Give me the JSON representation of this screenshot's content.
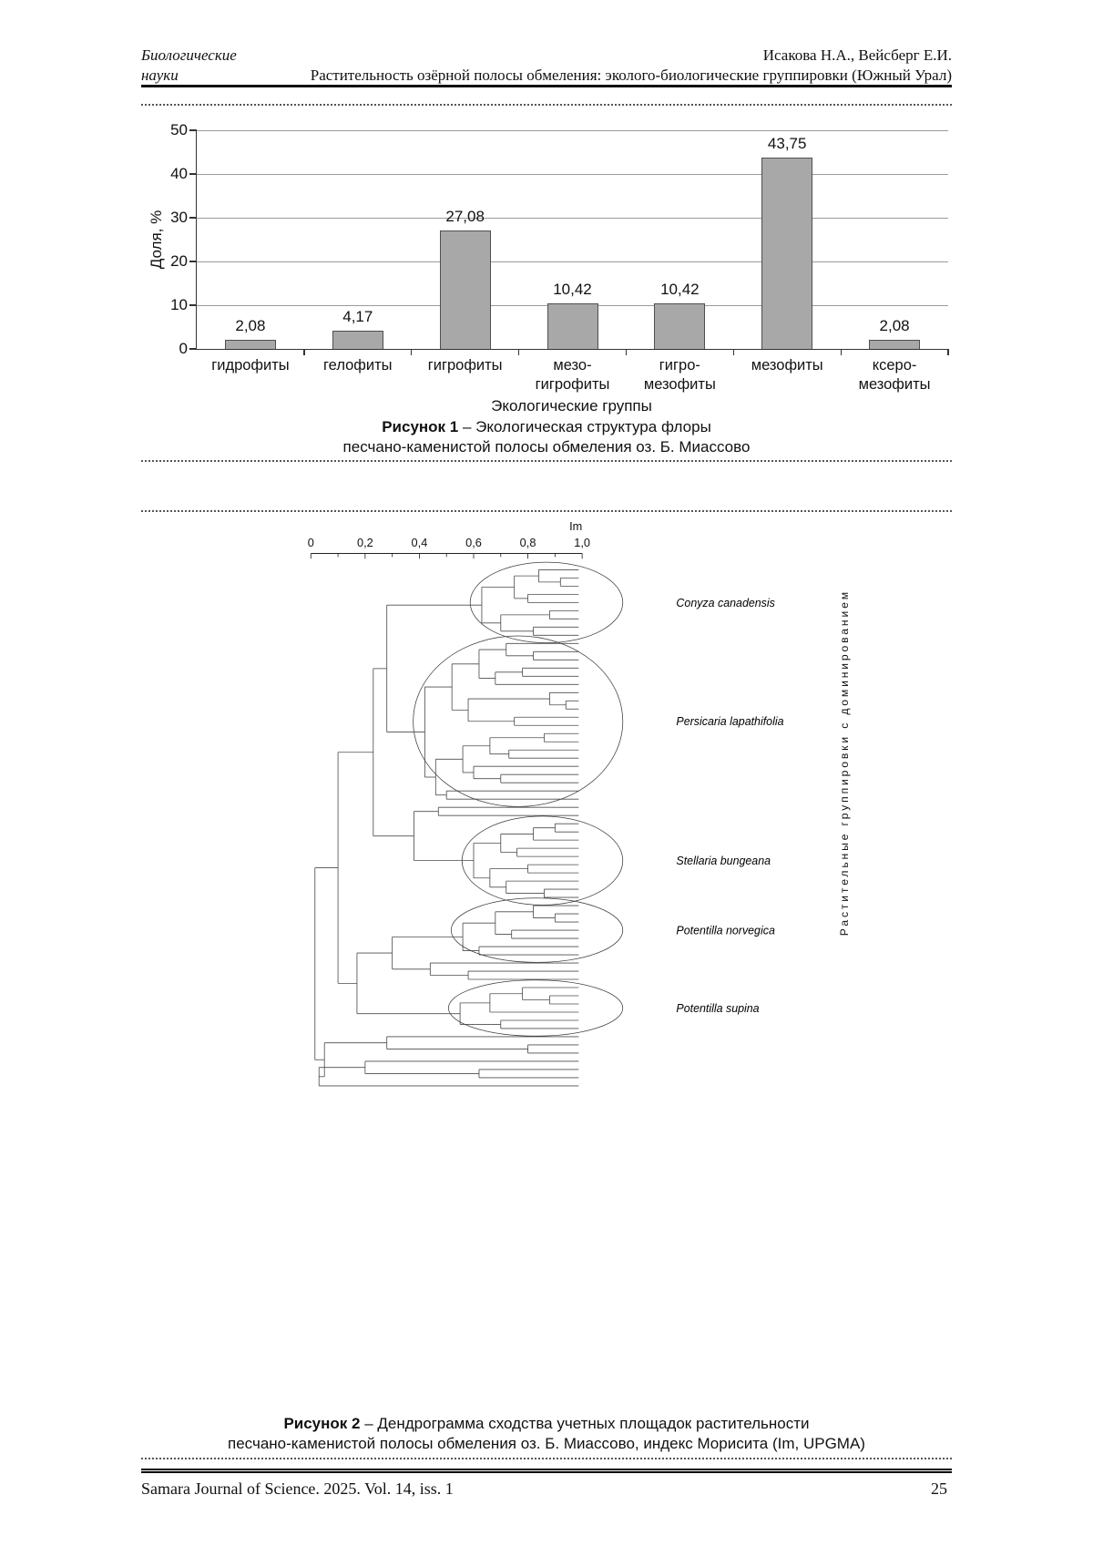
{
  "header": {
    "left_line1": "Биологические",
    "left_line2": "науки",
    "right_line1": "Исакова Н.А., Вейсберг Е.И.",
    "right_line2": "Растительность озёрной полосы обмеления: эколого-биологические группировки (Южный Урал)"
  },
  "figure1": {
    "caption_bold": "Рисунок 1",
    "caption_rest": " – Экологическая структура флоры",
    "caption_line2": "песчано-каменистой полосы обмеления оз. Б. Миассово"
  },
  "figure2": {
    "caption_bold": "Рисунок 2",
    "caption_rest": " – Дендрограмма сходства учетных площадок растительности",
    "caption_line2": "песчано-каменистой полосы обмеления оз. Б. Миассово, индекс Морисита (Im, UPGMA)"
  },
  "footer": {
    "journal": "Samara Journal of Science. 2025. Vol. 14, iss. 1",
    "page": "25"
  },
  "chart_data": [
    {
      "type": "bar",
      "categories": [
        [
          "гидрофиты"
        ],
        [
          "гелофиты"
        ],
        [
          "гигрофиты"
        ],
        [
          "мезо-",
          "гигрофиты"
        ],
        [
          "гигро-",
          "мезофиты"
        ],
        [
          "мезофиты"
        ],
        [
          "ксеро-",
          "мезофиты"
        ]
      ],
      "values": [
        2.08,
        4.17,
        27.08,
        10.42,
        10.42,
        43.75,
        2.08
      ],
      "value_labels": [
        "2,08",
        "4,17",
        "27,08",
        "10,42",
        "10,42",
        "43,75",
        "2,08"
      ],
      "ylabel": "Доля, %",
      "xlabel": "Экологические группы",
      "ylim": [
        0,
        50
      ],
      "yticks": [
        0,
        10,
        20,
        30,
        40,
        50
      ],
      "grid": true,
      "bar_color": "#a8a8a8",
      "bar_border": "#4f4f4f"
    },
    {
      "type": "dendrogram",
      "orientation": "horizontal",
      "axis_label": "Im",
      "axis_range": [
        0,
        1
      ],
      "axis_ticks": [
        "0",
        "0,2",
        "0,4",
        "0,6",
        "0,8",
        "1,0"
      ],
      "right_label": "Растительные группировки с доминированием",
      "clusters": [
        "Conyza canadensis",
        "Persicaria lapathifolia",
        "Stellaria bungeana",
        "Potentilla norvegica",
        "Potentilla supina"
      ],
      "tree": {
        "h": 0.015,
        "c": [
          {
            "h": 0.1,
            "c": [
              {
                "h": 0.23,
                "c": [
                  {
                    "h": 0.28,
                    "c": [
                      {
                        "h": 0.63,
                        "label": "Conyza canadensis",
                        "c": [
                          {
                            "h": 0.75,
                            "c": [
                              {
                                "h": 0.84,
                                "c": [
                                  1,
                                  {
                                    "h": 0.92,
                                    "c": [
                                      1,
                                      1
                                    ]
                                  }
                                ]
                              },
                              {
                                "h": 0.8,
                                "c": [
                                  1,
                                  1
                                ]
                              }
                            ]
                          },
                          {
                            "h": 0.7,
                            "c": [
                              {
                                "h": 0.88,
                                "c": [
                                  1,
                                  1
                                ]
                              },
                              {
                                "h": 0.82,
                                "c": [
                                  1,
                                  1
                                ]
                              }
                            ]
                          }
                        ]
                      },
                      {
                        "h": 0.42,
                        "label": "Persicaria lapathifolia",
                        "c": [
                          {
                            "h": 0.52,
                            "c": [
                              {
                                "h": 0.62,
                                "c": [
                                  {
                                    "h": 0.72,
                                    "c": [
                                      1,
                                      {
                                        "h": 0.82,
                                        "c": [
                                          1,
                                          1
                                        ]
                                      }
                                    ]
                                  },
                                  {
                                    "h": 0.68,
                                    "c": [
                                      {
                                        "h": 0.78,
                                        "c": [
                                          1,
                                          1
                                        ]
                                      },
                                      1
                                    ]
                                  }
                                ]
                              },
                              {
                                "h": 0.58,
                                "c": [
                                  {
                                    "h": 0.88,
                                    "c": [
                                      1,
                                      {
                                        "h": 0.94,
                                        "c": [
                                          1,
                                          1
                                        ]
                                      }
                                    ]
                                  },
                                  {
                                    "h": 0.75,
                                    "c": [
                                      1,
                                      1
                                    ]
                                  }
                                ]
                              }
                            ]
                          },
                          {
                            "h": 0.46,
                            "c": [
                              {
                                "h": 0.56,
                                "c": [
                                  {
                                    "h": 0.66,
                                    "c": [
                                      {
                                        "h": 0.86,
                                        "c": [
                                          1,
                                          1
                                        ]
                                      },
                                      {
                                        "h": 0.73,
                                        "c": [
                                          1,
                                          1
                                        ]
                                      }
                                    ]
                                  },
                                  {
                                    "h": 0.6,
                                    "c": [
                                      1,
                                      {
                                        "h": 0.7,
                                        "c": [
                                          1,
                                          1
                                        ]
                                      }
                                    ]
                                  }
                                ]
                              },
                              {
                                "h": 0.5,
                                "c": [
                                  1,
                                  1
                                ]
                              }
                            ]
                          }
                        ]
                      }
                    ]
                  },
                  {
                    "h": 0.38,
                    "c": [
                      {
                        "h": 0.47,
                        "c": [
                          1,
                          1
                        ]
                      },
                      {
                        "h": 0.6,
                        "label": "Stellaria bungeana",
                        "c": [
                          {
                            "h": 0.7,
                            "c": [
                              {
                                "h": 0.82,
                                "c": [
                                  {
                                    "h": 0.9,
                                    "c": [
                                      1,
                                      1
                                    ]
                                  },
                                  1
                                ]
                              },
                              {
                                "h": 0.76,
                                "c": [
                                  1,
                                  1
                                ]
                              }
                            ]
                          },
                          {
                            "h": 0.66,
                            "c": [
                              {
                                "h": 0.8,
                                "c": [
                                  1,
                                  1
                                ]
                              },
                              {
                                "h": 0.72,
                                "c": [
                                  1,
                                  {
                                    "h": 0.86,
                                    "c": [
                                      1,
                                      1
                                    ]
                                  }
                                ]
                              }
                            ]
                          }
                        ]
                      }
                    ]
                  }
                ]
              },
              {
                "h": 0.17,
                "c": [
                  {
                    "h": 0.3,
                    "c": [
                      {
                        "h": 0.56,
                        "label": "Potentilla norvegica",
                        "c": [
                          {
                            "h": 0.68,
                            "c": [
                              {
                                "h": 0.82,
                                "c": [
                                  1,
                                  {
                                    "h": 0.9,
                                    "c": [
                                      1,
                                      1
                                    ]
                                  }
                                ]
                              },
                              {
                                "h": 0.74,
                                "c": [
                                  1,
                                  1
                                ]
                              }
                            ]
                          },
                          {
                            "h": 0.62,
                            "c": [
                              1,
                              1
                            ]
                          }
                        ]
                      },
                      {
                        "h": 0.44,
                        "c": [
                          1,
                          {
                            "h": 0.58,
                            "c": [
                              1,
                              1
                            ]
                          }
                        ]
                      }
                    ]
                  },
                  {
                    "h": 0.55,
                    "label": "Potentilla supina",
                    "c": [
                      {
                        "h": 0.66,
                        "c": [
                          {
                            "h": 0.78,
                            "c": [
                              1,
                              {
                                "h": 0.88,
                                "c": [
                                  1,
                                  1
                                ]
                              }
                            ]
                          },
                          1
                        ]
                      },
                      {
                        "h": 0.7,
                        "c": [
                          1,
                          1
                        ]
                      }
                    ]
                  }
                ]
              }
            ]
          },
          {
            "h": 0.05,
            "c": [
              {
                "h": 0.28,
                "c": [
                  1,
                  {
                    "h": 0.8,
                    "c": [
                      1,
                      1
                    ]
                  }
                ]
              },
              {
                "h": 0.03,
                "c": [
                  {
                    "h": 0.2,
                    "c": [
                      1,
                      {
                        "h": 0.62,
                        "c": [
                          1,
                          1
                        ]
                      }
                    ]
                  },
                  1
                ]
              }
            ]
          }
        ]
      }
    }
  ]
}
